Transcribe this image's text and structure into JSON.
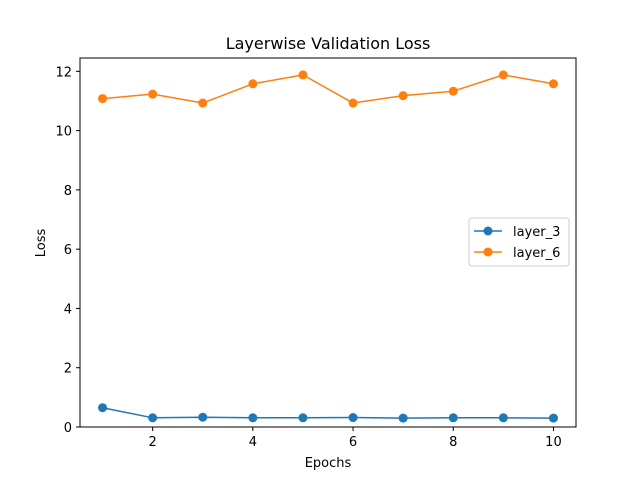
{
  "chart_data": {
    "type": "line",
    "title": "Layerwise Validation Loss",
    "xlabel": "Epochs",
    "ylabel": "Loss",
    "x": [
      1,
      2,
      3,
      4,
      5,
      6,
      7,
      8,
      9,
      10
    ],
    "xlim": [
      0.55,
      10.45
    ],
    "ylim": [
      0,
      12.45
    ],
    "xticks": [
      2,
      4,
      6,
      8,
      10
    ],
    "yticks": [
      0,
      2,
      4,
      6,
      8,
      10,
      12
    ],
    "grid": false,
    "legend_position": "center-right",
    "series": [
      {
        "name": "layer_3",
        "color": "#1f77b4",
        "marker": "circle",
        "values": [
          0.65,
          0.31,
          0.33,
          0.31,
          0.31,
          0.32,
          0.3,
          0.31,
          0.31,
          0.3
        ]
      },
      {
        "name": "layer_6",
        "color": "#ff7f0e",
        "marker": "circle",
        "values": [
          11.08,
          11.23,
          10.93,
          11.58,
          11.88,
          10.93,
          11.18,
          11.33,
          11.88,
          11.58
        ]
      }
    ]
  }
}
